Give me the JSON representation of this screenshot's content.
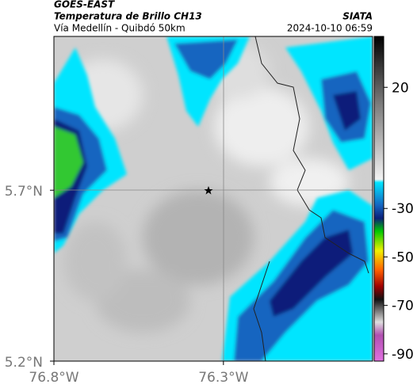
{
  "header": {
    "source": "GOES-EAST",
    "product": "Temperatura de Brillo CH13",
    "region": "Vía Medellín - Quibdó 50km",
    "agency": "SIATA",
    "timestamp": "2024-10-10 06:59"
  },
  "map": {
    "xlim": [
      -76.8,
      -75.86
    ],
    "ylim": [
      5.2,
      6.15
    ],
    "xticks": [
      {
        "value": -76.8,
        "label": "76.8°W"
      },
      {
        "value": -76.3,
        "label": "76.3°W"
      }
    ],
    "yticks": [
      {
        "value": 5.7,
        "label": "5.7°N"
      },
      {
        "value": 5.2,
        "label": "5.2°N"
      }
    ]
  },
  "colorbar": {
    "clim": [
      -93,
      41
    ],
    "ticks": [
      20,
      -30,
      -50,
      -70,
      -90
    ]
  }
}
